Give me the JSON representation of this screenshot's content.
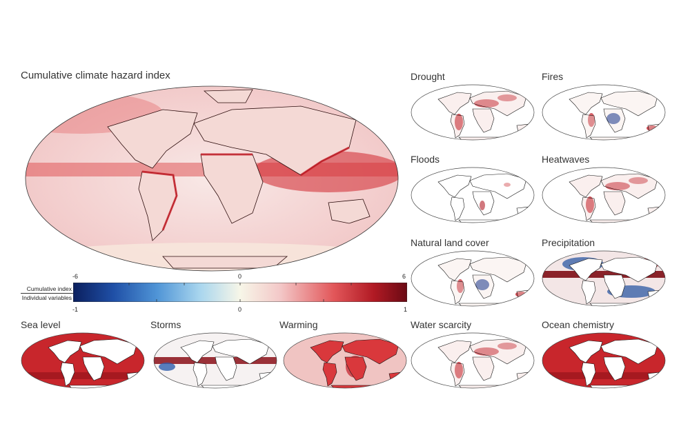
{
  "main_title": "Cumulative climate hazard index",
  "colorbar": {
    "row1_label": "Cumulative index",
    "row2_label": "Individual variables",
    "row1_ticks": [
      "-6",
      "0",
      "6"
    ],
    "row2_ticks": [
      "-1",
      "0",
      "1"
    ],
    "colors": [
      "#0b1f5e",
      "#1f4fa6",
      "#4f94d6",
      "#a9d6ee",
      "#f7f6e8",
      "#f3c8c8",
      "#e2575a",
      "#b11a24",
      "#6a0a14"
    ]
  },
  "panels": [
    {
      "id": "drought",
      "title": "Drought",
      "style": "land-red"
    },
    {
      "id": "fires",
      "title": "Fires",
      "style": "land-mixed"
    },
    {
      "id": "floods",
      "title": "Floods",
      "style": "land-sparse"
    },
    {
      "id": "heatwaves",
      "title": "Heatwaves",
      "style": "land-red"
    },
    {
      "id": "natural-land-cover",
      "title": "Natural land cover",
      "style": "land-mixed"
    },
    {
      "id": "precipitation",
      "title": "Precipitation",
      "style": "full-mixed"
    },
    {
      "id": "sea-level",
      "title": "Sea level",
      "style": "ocean-red"
    },
    {
      "id": "storms",
      "title": "Storms",
      "style": "ocean-bands"
    },
    {
      "id": "warming",
      "title": "Warming",
      "style": "full-red"
    },
    {
      "id": "water-scarcity",
      "title": "Water scarcity",
      "style": "land-red"
    },
    {
      "id": "ocean-chemistry",
      "title": "Ocean chemistry",
      "style": "ocean-red"
    }
  ]
}
